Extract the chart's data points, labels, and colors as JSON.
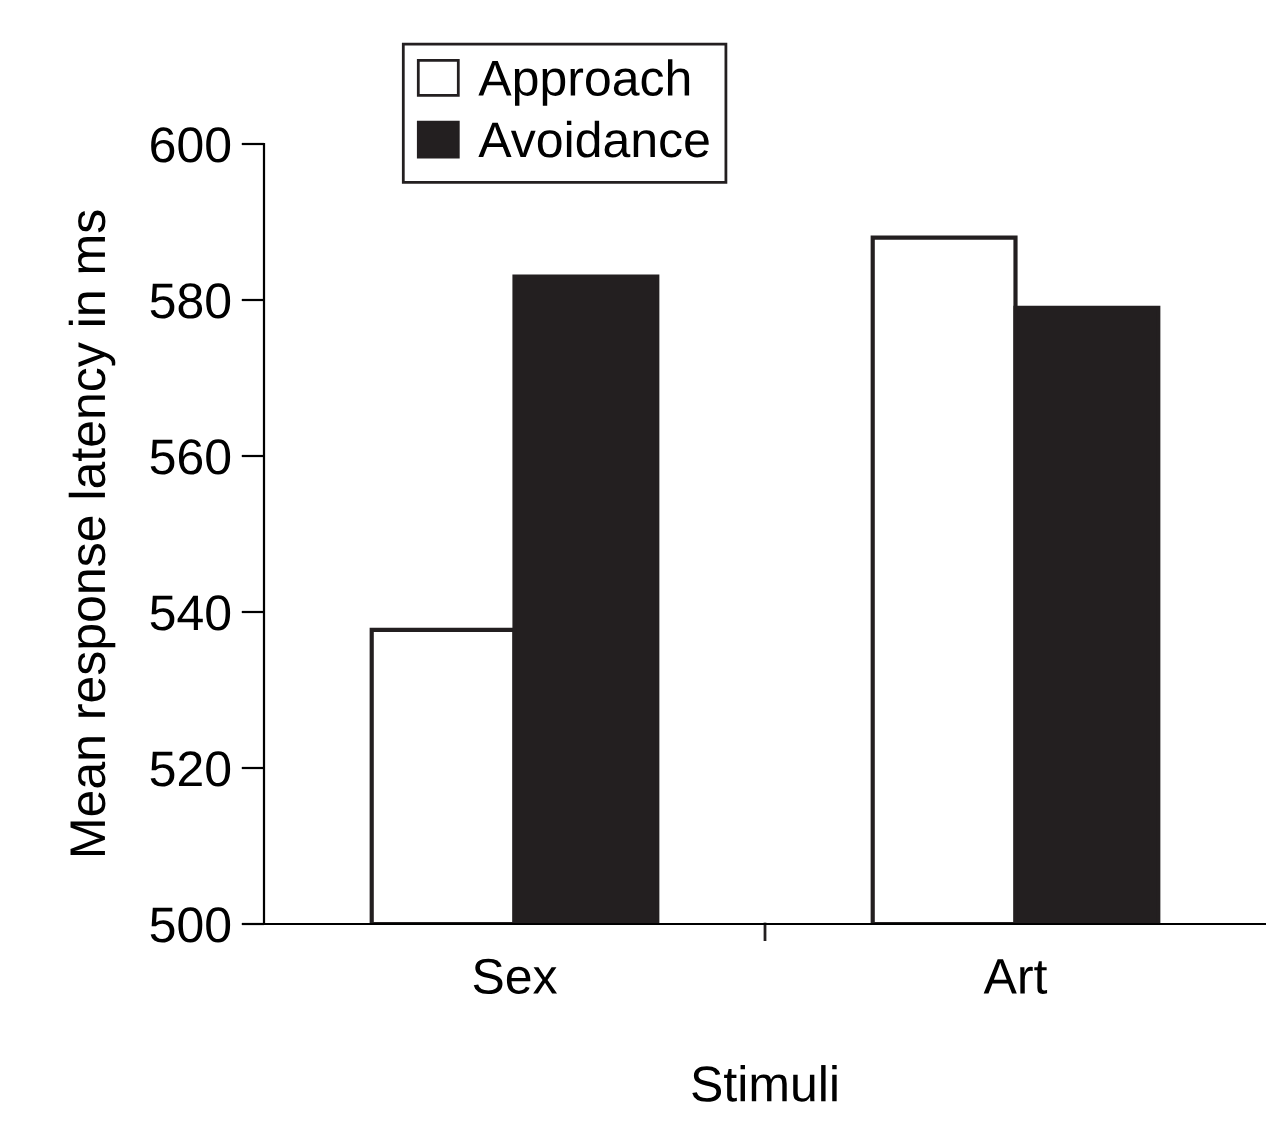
{
  "chart_data": {
    "type": "bar",
    "xlabel": "Stimuli",
    "ylabel": "Mean response latency in ms",
    "categories": [
      "Sex",
      "Art"
    ],
    "series": [
      {
        "name": "Approach",
        "color": "#ffffff",
        "values": [
          537.7,
          588
        ]
      },
      {
        "name": "Avoidance",
        "color": "#231f20",
        "values": [
          583,
          579
        ]
      }
    ],
    "ylim": [
      500,
      600
    ],
    "yticks": [
      500,
      520,
      540,
      560,
      580,
      600
    ],
    "grid": false,
    "legend": "top"
  }
}
